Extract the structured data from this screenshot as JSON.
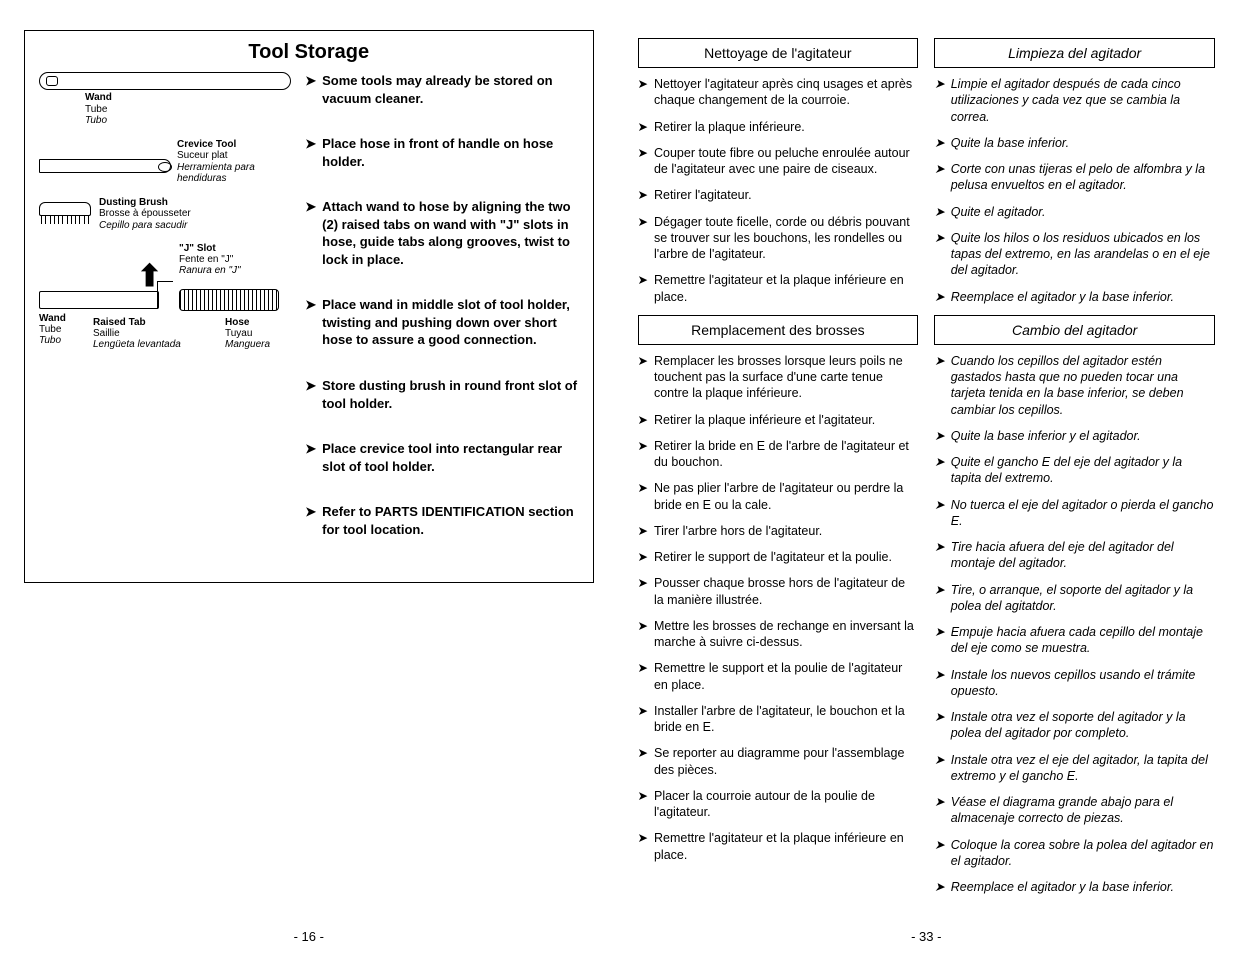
{
  "left": {
    "title": "Tool Storage",
    "pageNum": "- 16 -",
    "diagram": {
      "wand": {
        "en": "Wand",
        "fr": "Tube",
        "es": "Tubo"
      },
      "crevice": {
        "en": "Crevice Tool",
        "fr": "Suceur plat",
        "es": "Herramienta para hendiduras"
      },
      "brush": {
        "en": "Dusting Brush",
        "fr": "Brosse à épousseter",
        "es": "Cepillo para sacudir"
      },
      "jslot": {
        "en": "\"J\" Slot",
        "fr": "Fente en \"J\"",
        "es": "Ranura en \"J\""
      },
      "raised": {
        "en": "Raised Tab",
        "fr": "Saillie",
        "es": "Lengüeta levantada"
      },
      "hose": {
        "en": "Hose",
        "fr": "Tuyau",
        "es": "Manguera"
      }
    },
    "bullets": [
      "Some tools may already be stored on vacuum cleaner.",
      "Place hose in front of handle on hose holder.",
      "Attach wand to hose by aligning the two (2) raised tabs on wand with \"J\" slots in hose, guide tabs along grooves, twist to lock in place.",
      "Place wand in middle slot of tool holder, twisting and pushing down over short hose to assure a good connection.",
      "Store dusting brush in round front slot of tool holder.",
      "Place crevice tool into rectangular rear slot of tool holder.",
      "Refer to PARTS IDENTIFICATION section for tool location."
    ]
  },
  "right": {
    "pageNum": "- 33 -",
    "fr": {
      "sec1": {
        "title": "Nettoyage de l'agitateur",
        "items": [
          "Nettoyer l'agitateur après cinq usages et après chaque changement de la courroie.",
          "Retirer la plaque inférieure.",
          "Couper toute fibre ou peluche enroulée autour de l'agitateur avec une paire de ciseaux.",
          "Retirer l'agitateur.",
          "Dégager toute ficelle, corde ou débris pouvant se trouver sur les bouchons, les rondelles ou l'arbre de l'agitateur.",
          "Remettre l'agitateur et la plaque inférieure en place."
        ]
      },
      "sec2": {
        "title": "Remplacement des brosses",
        "items": [
          "Remplacer les brosses lorsque leurs poils ne touchent pas la surface d'une carte tenue contre la plaque inférieure.",
          "Retirer la plaque inférieure et l'agitateur.",
          "Retirer la bride en E de l'arbre de l'agitateur et du bouchon.",
          "Ne pas plier l'arbre de l'agitateur ou perdre la bride en E ou la cale.",
          "Tirer l'arbre hors de l'agitateur.",
          "Retirer le support de l'agitateur et la poulie.",
          "Pousser chaque brosse hors de l'agitateur de la manière illustrée.",
          "Mettre les brosses de rechange en inversant la marche à suivre ci-dessus.",
          "Remettre le support et la poulie de l'agitateur en place.",
          "Installer l'arbre de l'agitateur, le bouchon et la bride en E.",
          "Se reporter au diagramme pour l'assemblage des pièces.",
          "Placer la courroie autour de la poulie de l'agitateur.",
          "Remettre l'agitateur et la plaque inférieure en place."
        ]
      }
    },
    "es": {
      "sec1": {
        "title": "Limpieza del agitador",
        "items": [
          "Limpie el agitador después de cada cinco utilizaciones y cada vez que se cambia la correa.",
          "Quite la base inferior.",
          "Corte con unas tijeras el pelo de alfombra y la pelusa envueltos en el agitador.",
          "Quite el agitador.",
          "Quite los hilos o los residuos ubicados en los tapas del extremo, en las arandelas o en el eje del agitador.",
          "Reemplace el agitador y la base inferior."
        ]
      },
      "sec2": {
        "title": "Cambio del agitador",
        "items": [
          "Cuando los cepillos del agitador estén gastados hasta que no pueden tocar una tarjeta tenida en la base inferior, se deben cambiar los cepillos.",
          "Quite la base inferior y el agitador.",
          "Quite el gancho E del eje del agitador y la tapita del extremo.",
          "No tuerca el eje del agitador o pierda el gancho E.",
          "Tire hacia afuera del eje del agitador del montaje del agitador.",
          "Tire, o arranque, el soporte del agitador y la polea del agitatdor.",
          "Empuje hacia afuera cada cepillo del montaje del eje como se muestra.",
          "Instale los nuevos cepillos usando el trámite opuesto.",
          "Instale otra vez el soporte del agitador y la polea del agitador por completo.",
          "Instale otra vez el eje del agitador, la tapita del extremo y el gancho E.",
          "Véase el diagrama grande abajo para el almacenaje correcto de piezas.",
          "Coloque la corea sobre la polea del agitador en el agitador.",
          "Reemplace el agitador y la base inferior."
        ]
      }
    }
  },
  "arrowGlyph": "➤"
}
